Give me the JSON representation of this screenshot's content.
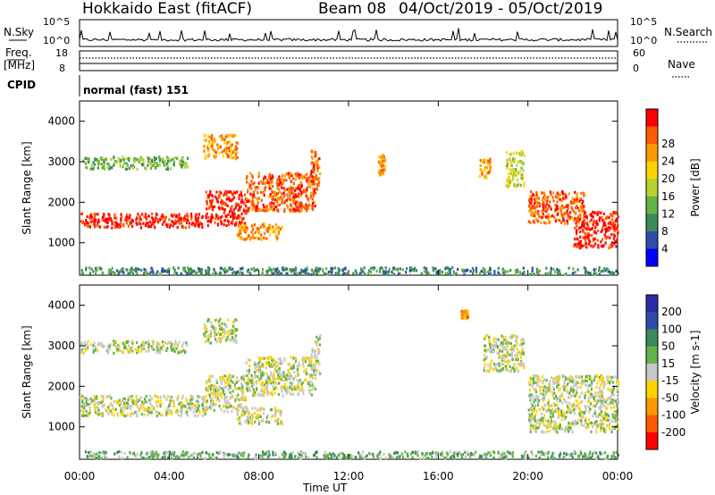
{
  "header": {
    "station": "Hokkaido East (fitACF)",
    "beam": "Beam 08",
    "dates": "04/Oct/2019 - 05/Oct/2019"
  },
  "top_panels": {
    "nsky_label": "N.Sky",
    "nsky_ticks": [
      "10^5",
      "10^0"
    ],
    "nsearch_label": "N.Search",
    "nsearch_ticks": [
      "10^5",
      "10^0"
    ],
    "freq_label_1": "Freq.",
    "freq_label_2": "[MHz]",
    "freq_ticks": [
      "18",
      "8"
    ],
    "nave_label": "Nave",
    "nave_ticks": [
      "60",
      "0"
    ],
    "cpid_label": "CPID",
    "cpid_value": "normal (fast) 151"
  },
  "x_axis": {
    "label": "Time UT",
    "ticks": [
      "00:00",
      "04:00",
      "08:00",
      "12:00",
      "16:00",
      "20:00",
      "00:00"
    ]
  },
  "colors": {
    "power": [
      "#0000ff",
      "#2e4ca8",
      "#3a8a5a",
      "#66b24a",
      "#b8d22f",
      "#ffd400",
      "#ff9a00",
      "#ff5a00",
      "#ff0000"
    ],
    "velocity": [
      "#2a2aa8",
      "#2e4ca8",
      "#3a8a5a",
      "#66b24a",
      "#c8c8c8",
      "#ffd400",
      "#ff9a00",
      "#ff5a00",
      "#ff0000"
    ]
  },
  "chart_data": [
    {
      "type": "heatmap",
      "name": "power",
      "ylabel": "Slant Range [km]",
      "yticks": [
        "1000",
        "2000",
        "3000",
        "4000"
      ],
      "ylim": [
        200,
        4500
      ],
      "xlim_hours": [
        0,
        24
      ],
      "colorbar_label": "Power [dB]",
      "colorbar_ticks": [
        "4",
        "8",
        "12",
        "16",
        "20",
        "24",
        "28"
      ],
      "features": [
        {
          "t_start": 0.0,
          "t_end": 5.6,
          "range_start": 1400,
          "range_end": 1750,
          "level": 8
        },
        {
          "t_start": 5.6,
          "t_end": 7.4,
          "range_start": 1450,
          "range_end": 2300,
          "level": 8
        },
        {
          "t_start": 7.4,
          "t_end": 10.5,
          "range_start": 1800,
          "range_end": 2750,
          "level": 7
        },
        {
          "t_start": 7.0,
          "t_end": 9.0,
          "range_start": 1100,
          "range_end": 1500,
          "level": 6
        },
        {
          "t_start": 0.0,
          "t_end": 4.8,
          "range_start": 2850,
          "range_end": 3150,
          "level": 3
        },
        {
          "t_start": 5.5,
          "t_end": 7.0,
          "range_start": 3100,
          "range_end": 3700,
          "level": 6
        },
        {
          "t_start": 10.3,
          "t_end": 10.7,
          "range_start": 2300,
          "range_end": 3300,
          "level": 7
        },
        {
          "t_start": 13.3,
          "t_end": 13.6,
          "range_start": 2700,
          "range_end": 3200,
          "level": 6
        },
        {
          "t_start": 17.8,
          "t_end": 18.3,
          "range_start": 2600,
          "range_end": 3100,
          "level": 6
        },
        {
          "t_start": 19.0,
          "t_end": 19.8,
          "range_start": 2400,
          "range_end": 3300,
          "level": 4
        },
        {
          "t_start": 20.0,
          "t_end": 22.5,
          "range_start": 1500,
          "range_end": 2300,
          "level": 7
        },
        {
          "t_start": 22.0,
          "t_end": 24.0,
          "range_start": 900,
          "range_end": 1800,
          "level": 8
        },
        {
          "t_start": 0.0,
          "t_end": 24.0,
          "range_start": 250,
          "range_end": 420,
          "level": 2
        }
      ]
    },
    {
      "type": "heatmap",
      "name": "velocity",
      "ylabel": "Slant Range [km]",
      "yticks": [
        "1000",
        "2000",
        "3000",
        "4000"
      ],
      "ylim": [
        200,
        4500
      ],
      "xlim_hours": [
        0,
        24
      ],
      "colorbar_label": "Velocity [m s-1]",
      "colorbar_ticks": [
        "200",
        "100",
        "50",
        "15",
        "-15",
        "-50",
        "-100",
        "-200"
      ],
      "features": [
        {
          "t_start": 0.0,
          "t_end": 5.6,
          "range_start": 1300,
          "range_end": 1800,
          "level": 4
        },
        {
          "t_start": 5.6,
          "t_end": 7.4,
          "range_start": 1400,
          "range_end": 2300,
          "level": 4
        },
        {
          "t_start": 7.4,
          "t_end": 10.5,
          "range_start": 1800,
          "range_end": 2750,
          "level": 4
        },
        {
          "t_start": 7.0,
          "t_end": 9.0,
          "range_start": 1100,
          "range_end": 1500,
          "level": 4
        },
        {
          "t_start": 0.0,
          "t_end": 4.8,
          "range_start": 2850,
          "range_end": 3150,
          "level": 4
        },
        {
          "t_start": 5.5,
          "t_end": 7.0,
          "range_start": 3100,
          "range_end": 3700,
          "level": 4
        },
        {
          "t_start": 10.3,
          "t_end": 10.7,
          "range_start": 2300,
          "range_end": 3300,
          "level": 4
        },
        {
          "t_start": 17.0,
          "t_end": 17.3,
          "range_start": 3700,
          "range_end": 3900,
          "level": 6
        },
        {
          "t_start": 18.0,
          "t_end": 19.8,
          "range_start": 2400,
          "range_end": 3300,
          "level": 4
        },
        {
          "t_start": 20.0,
          "t_end": 24.0,
          "range_start": 900,
          "range_end": 2300,
          "level": 4
        },
        {
          "t_start": 0.0,
          "t_end": 24.0,
          "range_start": 250,
          "range_end": 420,
          "level": 3
        }
      ]
    }
  ]
}
